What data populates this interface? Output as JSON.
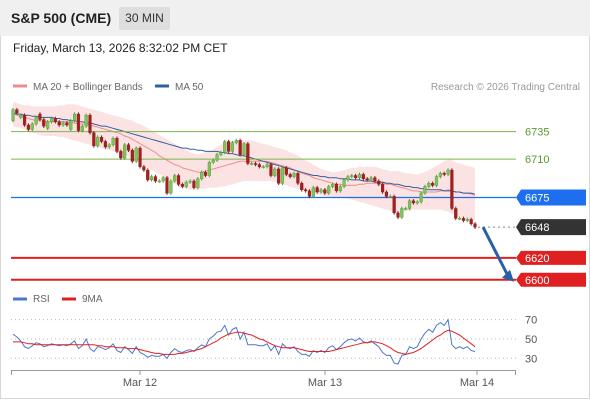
{
  "header": {
    "instrument": "S&P 500 (CME)",
    "timeframe": "30 MIN",
    "datetime": "Friday, March 13, 2026 8:32:02 PM CET",
    "copyright": "Research © 2026 Trading Central"
  },
  "chart_data": [
    {
      "type": "candlestick",
      "legend": [
        {
          "name": "MA 20 + Bollinger Bands",
          "color": "#f08c8c"
        },
        {
          "name": "MA 50",
          "color": "#2f5f9e"
        }
      ],
      "x_labels": [
        "Mar 12",
        "Mar 13",
        "Mar 14"
      ],
      "ylim": [
        6598,
        6762
      ],
      "levels": [
        {
          "value": 6735,
          "label": "6735",
          "kind": "resistance",
          "color": "#7ab648"
        },
        {
          "value": 6710,
          "label": "6710",
          "kind": "resistance",
          "color": "#7ab648"
        },
        {
          "value": 6675,
          "label": "6675",
          "kind": "pivot",
          "color": "#1e6fef"
        },
        {
          "value": 6648,
          "label": "6648",
          "kind": "last",
          "color": "#333333"
        },
        {
          "value": 6620,
          "label": "6620",
          "kind": "support",
          "color": "#e02020"
        },
        {
          "value": 6600,
          "label": "6600",
          "kind": "support",
          "color": "#e02020"
        }
      ],
      "close": [
        6755,
        6752,
        6750,
        6741,
        6737,
        6742,
        6748,
        6746,
        6740,
        6744,
        6747,
        6744,
        6741,
        6743,
        6741,
        6745,
        6751,
        6736,
        6740,
        6750,
        6734,
        6722,
        6730,
        6726,
        6721,
        6723,
        6729,
        6717,
        6711,
        6723,
        6718,
        6708,
        6720,
        6703,
        6700,
        6691,
        6694,
        6690,
        6690,
        6693,
        6679,
        6690,
        6695,
        6687,
        6685,
        6689,
        6690,
        6684,
        6692,
        6698,
        6695,
        6707,
        6709,
        6714,
        6716,
        6726,
        6717,
        6725,
        6727,
        6714,
        6724,
        6706,
        6706,
        6705,
        6703,
        6703,
        6705,
        6695,
        6701,
        6688,
        6702,
        6696,
        6694,
        6697,
        6688,
        6682,
        6681,
        6676,
        6684,
        6680,
        6682,
        6679,
        6685,
        6687,
        6681,
        6685,
        6691,
        6694,
        6695,
        6693,
        6696,
        6692,
        6691,
        6693,
        6690,
        6687,
        6680,
        6676,
        6676,
        6661,
        6657,
        6665,
        6665,
        6672,
        6670,
        6671,
        6679,
        6685,
        6688,
        6686,
        6694,
        6697,
        6696,
        6700,
        6665,
        6656,
        6656,
        6654,
        6655,
        6651,
        6648
      ],
      "open": [
        6745,
        6755,
        6748,
        6750,
        6741,
        6737,
        6742,
        6751,
        6746,
        6738,
        6744,
        6747,
        6744,
        6741,
        6743,
        6737,
        6745,
        6751,
        6736,
        6740,
        6750,
        6734,
        6722,
        6730,
        6726,
        6721,
        6723,
        6729,
        6717,
        6711,
        6723,
        6718,
        6708,
        6720,
        6703,
        6700,
        6691,
        6694,
        6690,
        6690,
        6693,
        6679,
        6690,
        6695,
        6687,
        6685,
        6689,
        6690,
        6684,
        6692,
        6698,
        6695,
        6707,
        6709,
        6714,
        6716,
        6726,
        6717,
        6725,
        6727,
        6714,
        6724,
        6706,
        6706,
        6705,
        6703,
        6703,
        6705,
        6695,
        6701,
        6688,
        6702,
        6696,
        6694,
        6697,
        6688,
        6682,
        6681,
        6676,
        6684,
        6680,
        6682,
        6679,
        6685,
        6687,
        6681,
        6685,
        6691,
        6694,
        6695,
        6693,
        6696,
        6692,
        6691,
        6693,
        6690,
        6687,
        6680,
        6676,
        6676,
        6661,
        6657,
        6665,
        6665,
        6672,
        6670,
        6671,
        6679,
        6685,
        6688,
        6686,
        6694,
        6697,
        6696,
        6700,
        6665,
        6656,
        6656,
        6654,
        6655,
        6651
      ],
      "ma20": [
        6751,
        6750,
        6749,
        6748,
        6747,
        6746,
        6745,
        6745,
        6744,
        6744,
        6744,
        6744,
        6744,
        6744,
        6744,
        6743,
        6743,
        6742,
        6742,
        6742,
        6741,
        6740,
        6739,
        6738,
        6737,
        6736,
        6735,
        6734,
        6733,
        6731,
        6730,
        6728,
        6726,
        6724,
        6722,
        6720,
        6718,
        6716,
        6713,
        6711,
        6709,
        6707,
        6705,
        6704,
        6702,
        6701,
        6700,
        6699,
        6698,
        6698,
        6699,
        6700,
        6701,
        6702,
        6703,
        6704,
        6705,
        6706,
        6707,
        6708,
        6708,
        6708,
        6708,
        6708,
        6708,
        6708,
        6708,
        6707,
        6706,
        6705,
        6704,
        6703,
        6702,
        6700,
        6699,
        6697,
        6696,
        6695,
        6693,
        6692,
        6691,
        6690,
        6689,
        6688,
        6687,
        6687,
        6686,
        6686,
        6686,
        6686,
        6687,
        6687,
        6688,
        6688,
        6688,
        6688,
        6688,
        6687,
        6687,
        6686,
        6685,
        6684,
        6683,
        6682,
        6681,
        6681,
        6680,
        6680,
        6680,
        6680,
        6680,
        6681,
        6681,
        6682,
        6681,
        6680,
        6680,
        6679,
        6679,
        6678,
        6677
      ],
      "bb_upper": [
        6762,
        6761,
        6760,
        6759,
        6759,
        6758,
        6758,
        6758,
        6758,
        6758,
        6758,
        6758,
        6759,
        6759,
        6760,
        6760,
        6760,
        6759,
        6758,
        6757,
        6756,
        6755,
        6754,
        6753,
        6752,
        6751,
        6750,
        6749,
        6748,
        6747,
        6746,
        6745,
        6743,
        6742,
        6740,
        6738,
        6736,
        6734,
        6732,
        6730,
        6728,
        6726,
        6724,
        6722,
        6720,
        6718,
        6716,
        6715,
        6714,
        6715,
        6716,
        6717,
        6719,
        6721,
        6723,
        6724,
        6725,
        6726,
        6727,
        6727,
        6727,
        6727,
        6727,
        6726,
        6725,
        6724,
        6723,
        6722,
        6721,
        6720,
        6719,
        6718,
        6716,
        6715,
        6713,
        6711,
        6709,
        6707,
        6705,
        6703,
        6701,
        6700,
        6699,
        6698,
        6698,
        6699,
        6700,
        6701,
        6702,
        6702,
        6703,
        6703,
        6703,
        6703,
        6703,
        6702,
        6701,
        6700,
        6699,
        6699,
        6699,
        6698,
        6697,
        6697,
        6696,
        6696,
        6697,
        6698,
        6700,
        6702,
        6704,
        6706,
        6708,
        6710,
        6709,
        6707,
        6706,
        6705,
        6704,
        6703,
        6702
      ],
      "bb_lower": [
        6740,
        6739,
        6738,
        6737,
        6735,
        6734,
        6733,
        6732,
        6731,
        6731,
        6731,
        6731,
        6730,
        6730,
        6729,
        6728,
        6727,
        6726,
        6725,
        6724,
        6723,
        6722,
        6721,
        6720,
        6719,
        6718,
        6717,
        6716,
        6715,
        6714,
        6712,
        6710,
        6708,
        6706,
        6704,
        6702,
        6700,
        6698,
        6696,
        6694,
        6692,
        6689,
        6687,
        6685,
        6684,
        6683,
        6682,
        6682,
        6682,
        6683,
        6683,
        6684,
        6684,
        6684,
        6685,
        6685,
        6686,
        6687,
        6688,
        6689,
        6690,
        6690,
        6690,
        6690,
        6690,
        6690,
        6690,
        6690,
        6689,
        6688,
        6687,
        6686,
        6685,
        6684,
        6683,
        6682,
        6681,
        6680,
        6679,
        6678,
        6677,
        6676,
        6675,
        6675,
        6675,
        6675,
        6675,
        6674,
        6673,
        6672,
        6671,
        6670,
        6669,
        6668,
        6667,
        6666,
        6665,
        6664,
        6663,
        6662,
        6662,
        6662,
        6663,
        6663,
        6664,
        6664,
        6664,
        6664,
        6664,
        6664,
        6664,
        6664,
        6663,
        6662,
        6660,
        6658,
        6657,
        6656,
        6655,
        6654,
        6654
      ],
      "ma50": [
        6752,
        6751,
        6751,
        6750,
        6750,
        6749,
        6749,
        6748,
        6748,
        6748,
        6748,
        6747,
        6747,
        6746,
        6746,
        6745,
        6745,
        6744,
        6744,
        6743,
        6743,
        6742,
        6741,
        6740,
        6740,
        6739,
        6738,
        6737,
        6736,
        6735,
        6734,
        6733,
        6732,
        6731,
        6730,
        6729,
        6728,
        6727,
        6726,
        6725,
        6724,
        6723,
        6722,
        6721,
        6720,
        6720,
        6719,
        6719,
        6718,
        6718,
        6717,
        6717,
        6717,
        6717,
        6716,
        6716,
        6715,
        6715,
        6714,
        6713,
        6713,
        6712,
        6711,
        6710,
        6709,
        6708,
        6707,
        6706,
        6705,
        6704,
        6703,
        6702,
        6701,
        6700,
        6699,
        6698,
        6697,
        6696,
        6695,
        6695,
        6694,
        6694,
        6693,
        6693,
        6693,
        6692,
        6692,
        6692,
        6691,
        6691,
        6691,
        6690,
        6690,
        6690,
        6689,
        6689,
        6689,
        6688,
        6688,
        6687,
        6687,
        6686,
        6685,
        6685,
        6684,
        6684,
        6683,
        6683,
        6682,
        6682,
        6682,
        6682,
        6681,
        6681,
        6681,
        6680,
        6680,
        6679,
        6679,
        6679,
        6678
      ],
      "forecast": {
        "from": 6648,
        "to": 6600
      }
    },
    {
      "type": "line",
      "legend": [
        {
          "name": "RSI",
          "color": "#4a78c8"
        },
        {
          "name": "9MA",
          "color": "#e02020"
        }
      ],
      "y_ticks": [
        70,
        50,
        30
      ],
      "ylim": [
        22,
        80
      ],
      "rsi": [
        55,
        52,
        48,
        42,
        40,
        43,
        46,
        45,
        42,
        43,
        45,
        44,
        43,
        44,
        43,
        45,
        48,
        40,
        43,
        50,
        40,
        37,
        42,
        41,
        39,
        41,
        45,
        38,
        36,
        42,
        39,
        35,
        42,
        36,
        34,
        31,
        33,
        32,
        32,
        34,
        30,
        36,
        40,
        37,
        36,
        38,
        39,
        37,
        41,
        44,
        42,
        50,
        53,
        57,
        58,
        64,
        54,
        60,
        62,
        50,
        57,
        44,
        44,
        44,
        43,
        43,
        45,
        38,
        43,
        34,
        45,
        41,
        40,
        42,
        37,
        34,
        34,
        32,
        38,
        36,
        38,
        36,
        41,
        43,
        39,
        42,
        46,
        49,
        50,
        48,
        51,
        47,
        46,
        48,
        45,
        42,
        36,
        33,
        33,
        25,
        24,
        33,
        34,
        42,
        40,
        42,
        50,
        56,
        60,
        57,
        64,
        67,
        64,
        70,
        44,
        40,
        42,
        40,
        42,
        38,
        37
      ],
      "ma9": [
        47,
        47,
        47,
        46,
        45,
        45,
        44,
        44,
        44,
        44,
        44,
        44,
        44,
        44,
        44,
        44,
        44,
        44,
        44,
        44,
        44,
        44,
        43,
        43,
        42,
        42,
        42,
        41,
        41,
        41,
        40,
        40,
        40,
        39,
        38,
        37,
        36,
        35,
        35,
        34,
        34,
        34,
        34,
        35,
        35,
        36,
        37,
        38,
        39,
        40,
        42,
        44,
        46,
        48,
        51,
        53,
        55,
        56,
        57,
        57,
        56,
        55,
        54,
        52,
        50,
        49,
        47,
        45,
        43,
        42,
        41,
        41,
        41,
        41,
        40,
        39,
        38,
        37,
        37,
        37,
        37,
        37,
        37,
        38,
        39,
        40,
        41,
        42,
        43,
        44,
        45,
        46,
        46,
        47,
        47,
        46,
        45,
        43,
        41,
        38,
        36,
        35,
        34,
        35,
        36,
        38,
        40,
        43,
        46,
        49,
        52,
        54,
        57,
        59,
        58,
        56,
        54,
        51,
        48,
        45,
        42
      ]
    }
  ]
}
